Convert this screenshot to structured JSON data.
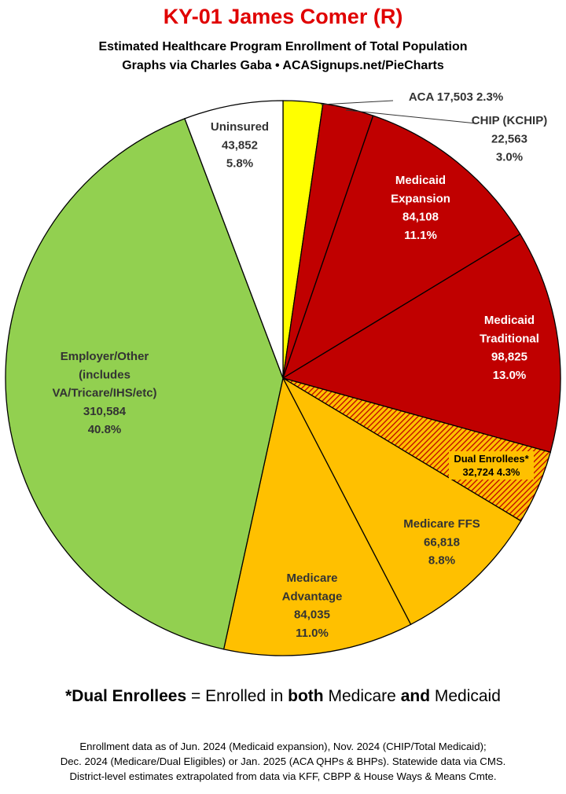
{
  "title": "KY-01 James Comer (R)",
  "subtitle_1": "Estimated Healthcare Program Enrollment of Total Population",
  "subtitle_2": "Graphs via Charles Gaba  •  ACASignups.net/PieCharts",
  "chart_data": {
    "type": "pie",
    "start": "12 o'clock",
    "direction": "clockwise",
    "slices": [
      {
        "label": "ACA",
        "value": 17503,
        "value_text": "17,503",
        "percent": "2.3%",
        "color": "#ffff00",
        "pattern": "solid",
        "label_placement": "outside",
        "label_color": "#333333"
      },
      {
        "label": "CHIP (KCHIP)",
        "value": 22563,
        "value_text": "22,563",
        "percent": "3.0%",
        "color": "#c00000",
        "pattern": "solid",
        "label_placement": "outside",
        "label_color": "#333333"
      },
      {
        "label": "Medicaid Expansion",
        "value": 84108,
        "value_text": "84,108",
        "percent": "11.1%",
        "color": "#c00000",
        "pattern": "solid",
        "label_placement": "inside",
        "label_color": "#ffffff"
      },
      {
        "label": "Medicaid Traditional",
        "value": 98825,
        "value_text": "98,825",
        "percent": "13.0%",
        "color": "#c00000",
        "pattern": "solid",
        "label_placement": "inside",
        "label_color": "#ffffff"
      },
      {
        "label": "Dual Enrollees*",
        "value": 32724,
        "value_text": "32,724",
        "percent": "4.3%",
        "color": "#ffc000",
        "pattern": "hatched-red",
        "label_placement": "inside",
        "label_color": "#000000"
      },
      {
        "label": "Medicare FFS",
        "value": 66818,
        "value_text": "66,818",
        "percent": "8.8%",
        "color": "#ffc000",
        "pattern": "solid",
        "label_placement": "inside",
        "label_color": "#333333"
      },
      {
        "label": "Medicare Advantage",
        "value": 84035,
        "value_text": "84,035",
        "percent": "11.0%",
        "color": "#ffc000",
        "pattern": "solid",
        "label_placement": "inside",
        "label_color": "#333333"
      },
      {
        "label": "Employer/Other (includes VA/Tricare/IHS/etc)",
        "value": 310584,
        "value_text": "310,584",
        "percent": "40.8%",
        "color": "#92d050",
        "pattern": "solid",
        "label_placement": "inside",
        "label_color": "#333333"
      },
      {
        "label": "Uninsured",
        "value": 43852,
        "value_text": "43,852",
        "percent": "5.8%",
        "color": "#ffffff",
        "pattern": "solid",
        "label_placement": "inside",
        "label_color": "#333333"
      }
    ]
  },
  "footnote": {
    "prefix": "*",
    "term": "Dual Enrollees",
    "t1": " = Enrolled in ",
    "b1": "both",
    "t2": " Medicare ",
    "b2": "and",
    "t3": " Medicaid"
  },
  "source_1": "Enrollment data as of Jun. 2024 (Medicaid expansion), Nov. 2024 (CHIP/Total Medicaid);",
  "source_2": "Dec. 2024 (Medicare/Dual Eligibles) or Jan. 2025 (ACA QHPs & BHPs). Statewide data via CMS.",
  "source_3": "District-level estimates extrapolated from data via KFF, CBPP & House Ways & Means Cmte."
}
